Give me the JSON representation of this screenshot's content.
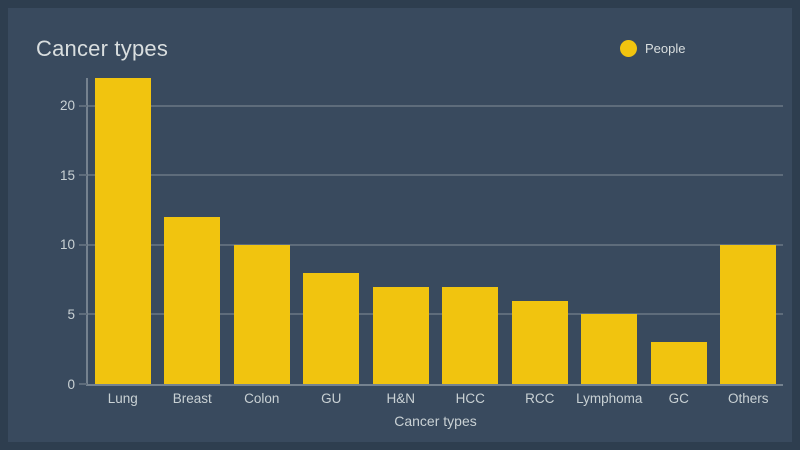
{
  "header": {
    "title": "Cancer types"
  },
  "legend": {
    "items": [
      {
        "label": "People",
        "marker": "circle-icon",
        "color": "#F1C40F"
      }
    ]
  },
  "colors": {
    "background": "#394A5E",
    "frame": "#2E3E4F",
    "bar": "#F1C40F",
    "text": "#D9DEDF",
    "grid": "#5E6C7B",
    "axis": "#75828F"
  },
  "chart_data": {
    "type": "bar",
    "title": "Cancer types",
    "categories": [
      "Lung",
      "Breast",
      "Colon",
      "GU",
      "H&N",
      "HCC",
      "RCC",
      "Lymphoma",
      "GC",
      "Others"
    ],
    "series": [
      {
        "name": "People",
        "values": [
          22,
          12,
          10,
          8,
          7,
          7,
          6,
          5,
          3,
          10
        ],
        "color": "#F1C40F"
      }
    ],
    "xlabel": "Cancer types",
    "ylabel": "",
    "ylim": [
      0,
      22
    ],
    "yticks": [
      0,
      5,
      10,
      15,
      20
    ],
    "grid": true,
    "legend_position": "top-right"
  }
}
